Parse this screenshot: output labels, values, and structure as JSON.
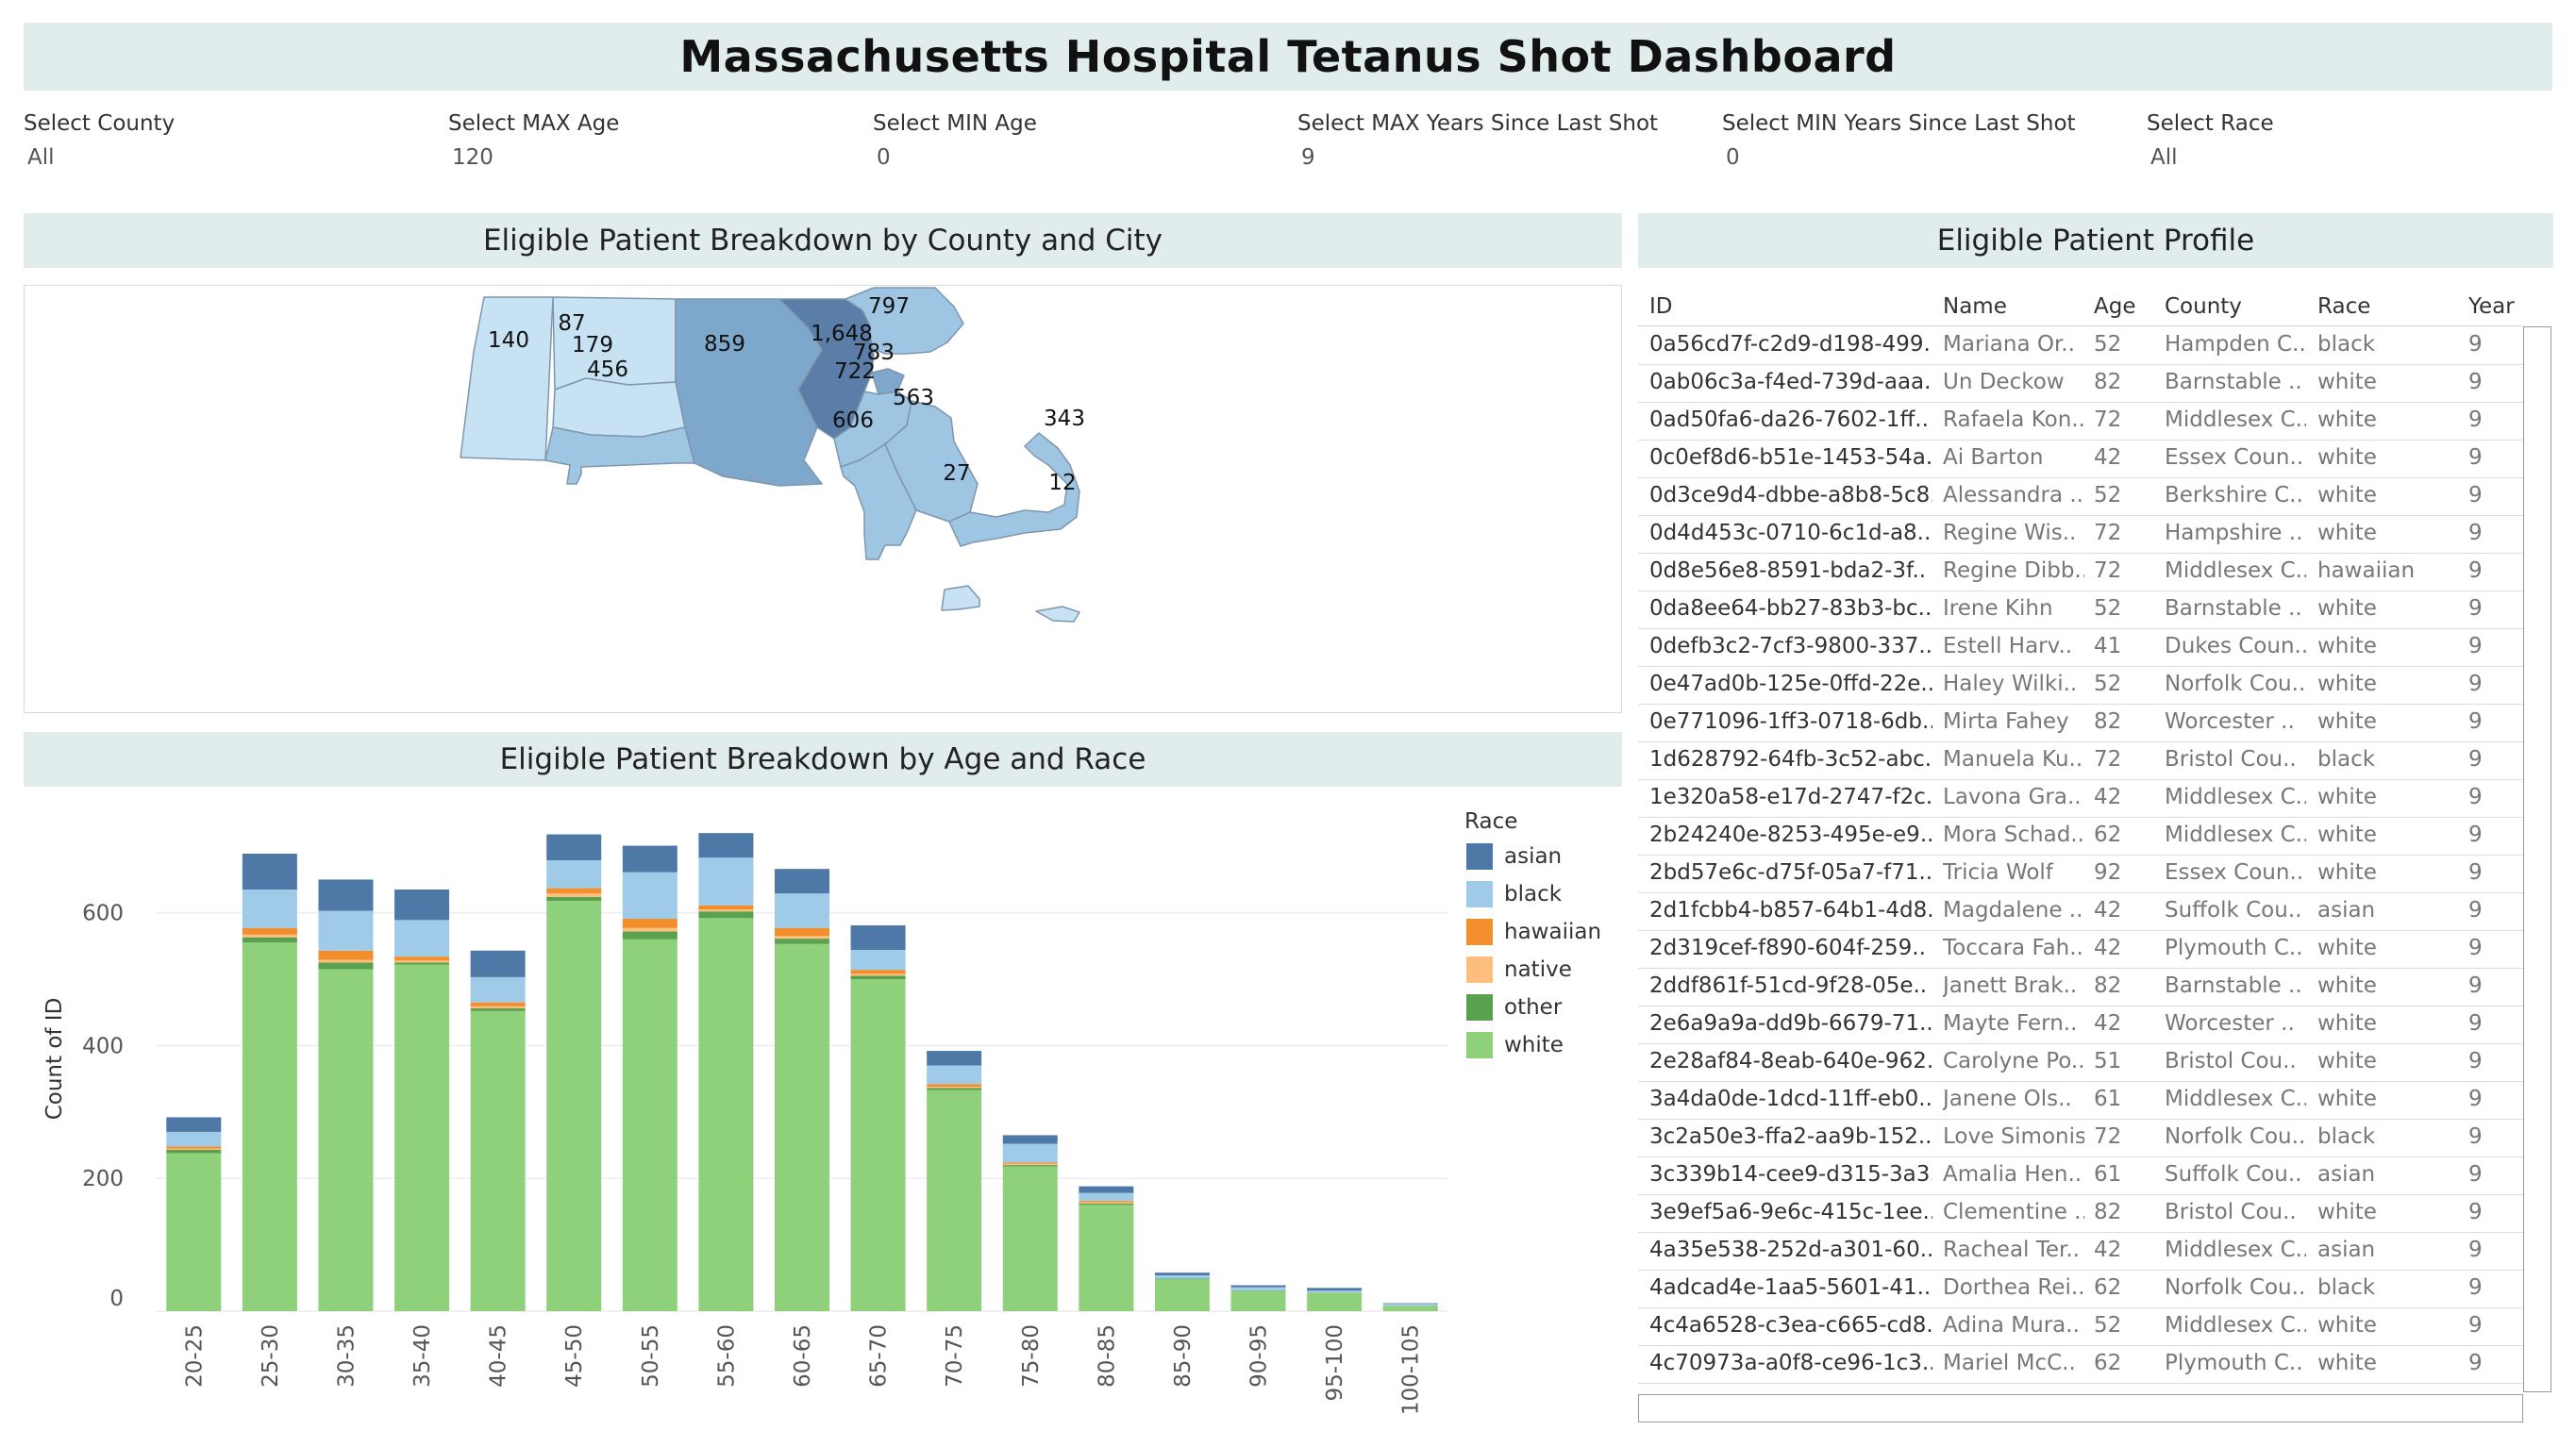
{
  "title": "Massachusetts Hospital Tetanus Shot Dashboard",
  "filters": [
    {
      "label": "Select County",
      "value": "All"
    },
    {
      "label": "Select MAX Age",
      "value": "120"
    },
    {
      "label": "Select MIN Age",
      "value": "0"
    },
    {
      "label": "Select MAX Years Since Last Shot",
      "value": "9"
    },
    {
      "label": "Select MIN Years Since Last Shot",
      "value": "0"
    },
    {
      "label": "Select Race",
      "value": "All"
    }
  ],
  "map_panel": {
    "title": "Eligible Patient Breakdown by County and City",
    "county_labels": [
      "797",
      "87",
      "140",
      "179",
      "859",
      "1,648",
      "783",
      "456",
      "722",
      "563",
      "606",
      "343",
      "27",
      "12"
    ]
  },
  "profile_panel": {
    "title": "Eligible Patient Profile",
    "columns": [
      "ID",
      "Name",
      "Age",
      "County",
      "Race",
      "Year"
    ],
    "rows": [
      [
        "0a56cd7f-c2d9-d198-499..",
        "Mariana Or..",
        "52",
        "Hampden C..",
        "black",
        "9"
      ],
      [
        "0ab06c3a-f4ed-739d-aaa..",
        "Un Deckow",
        "82",
        "Barnstable ..",
        "white",
        "9"
      ],
      [
        "0ad50fa6-da26-7602-1ff..",
        "Rafaela Kon..",
        "72",
        "Middlesex C..",
        "white",
        "9"
      ],
      [
        "0c0ef8d6-b51e-1453-54a..",
        "Ai Barton",
        "42",
        "Essex Coun..",
        "white",
        "9"
      ],
      [
        "0d3ce9d4-dbbe-a8b8-5c8..",
        "Alessandra ..",
        "52",
        "Berkshire C..",
        "white",
        "9"
      ],
      [
        "0d4d453c-0710-6c1d-a8..",
        "Regine Wis..",
        "72",
        "Hampshire ..",
        "white",
        "9"
      ],
      [
        "0d8e56e8-8591-bda2-3f..",
        "Regine Dibb..",
        "72",
        "Middlesex C..",
        "hawaiian",
        "9"
      ],
      [
        "0da8ee64-bb27-83b3-bc..",
        "Irene Kihn",
        "52",
        "Barnstable ..",
        "white",
        "9"
      ],
      [
        "0defb3c2-7cf3-9800-337..",
        "Estell Harv..",
        "41",
        "Dukes Coun..",
        "white",
        "9"
      ],
      [
        "0e47ad0b-125e-0ffd-22e..",
        "Haley Wilki..",
        "52",
        "Norfolk Cou..",
        "white",
        "9"
      ],
      [
        "0e771096-1ff3-0718-6db..",
        "Mirta Fahey",
        "82",
        "Worcester ..",
        "white",
        "9"
      ],
      [
        "1d628792-64fb-3c52-abc..",
        "Manuela Ku..",
        "72",
        "Bristol Cou..",
        "black",
        "9"
      ],
      [
        "1e320a58-e17d-2747-f2c..",
        "Lavona Gra..",
        "42",
        "Middlesex C..",
        "white",
        "9"
      ],
      [
        "2b24240e-8253-495e-e9..",
        "Mora Schad..",
        "62",
        "Middlesex C..",
        "white",
        "9"
      ],
      [
        "2bd57e6c-d75f-05a7-f71..",
        "Tricia Wolf",
        "92",
        "Essex Coun..",
        "white",
        "9"
      ],
      [
        "2d1fcbb4-b857-64b1-4d8..",
        "Magdalene ..",
        "42",
        "Suffolk Cou..",
        "asian",
        "9"
      ],
      [
        "2d319cef-f890-604f-259..",
        "Toccara Fah..",
        "42",
        "Plymouth C..",
        "white",
        "9"
      ],
      [
        "2ddf861f-51cd-9f28-05e..",
        "Janett Brak..",
        "82",
        "Barnstable ..",
        "white",
        "9"
      ],
      [
        "2e6a9a9a-dd9b-6679-71..",
        "Mayte Fern..",
        "42",
        "Worcester ..",
        "white",
        "9"
      ],
      [
        "2e28af84-8eab-640e-962..",
        "Carolyne Po..",
        "51",
        "Bristol Cou..",
        "white",
        "9"
      ],
      [
        "3a4da0de-1dcd-11ff-eb0..",
        "Janene Ols..",
        "61",
        "Middlesex C..",
        "white",
        "9"
      ],
      [
        "3c2a50e3-ffa2-aa9b-152..",
        "Love Simonis",
        "72",
        "Norfolk Cou..",
        "black",
        "9"
      ],
      [
        "3c339b14-cee9-d315-3a3..",
        "Amalia Hen..",
        "61",
        "Suffolk Cou..",
        "asian",
        "9"
      ],
      [
        "3e9ef5a6-9e6c-415c-1ee..",
        "Clementine ..",
        "82",
        "Bristol Cou..",
        "white",
        "9"
      ],
      [
        "4a35e538-252d-a301-60..",
        "Racheal Ter..",
        "42",
        "Middlesex C..",
        "asian",
        "9"
      ],
      [
        "4adcad4e-1aa5-5601-41..",
        "Dorthea Rei..",
        "62",
        "Norfolk Cou..",
        "black",
        "9"
      ],
      [
        "4c4a6528-c3ea-c665-cd8..",
        "Adina Mura..",
        "52",
        "Middlesex C..",
        "white",
        "9"
      ],
      [
        "4c70973a-a0f8-ce96-1c3..",
        "Mariel McC..",
        "62",
        "Plymouth C..",
        "white",
        "9"
      ]
    ]
  },
  "chart_panel": {
    "title": "Eligible Patient Breakdown by Age and Race"
  },
  "chart_data": {
    "type": "bar",
    "stacked": true,
    "title": "Eligible Patient Breakdown by Age and Race",
    "xlabel": "",
    "ylabel": "Count of ID",
    "ylim": [
      0,
      760
    ],
    "yticks": [
      0,
      200,
      400,
      600
    ],
    "grid": true,
    "legend": {
      "title": "Race",
      "position": "right"
    },
    "categories": [
      "20-25",
      "25-30",
      "30-35",
      "35-40",
      "40-45",
      "45-50",
      "50-55",
      "55-60",
      "60-65",
      "65-70",
      "70-75",
      "75-80",
      "80-85",
      "85-90",
      "90-95",
      "95-100",
      "100-105"
    ],
    "series": [
      {
        "name": "white",
        "color": "#8fd17a",
        "values": [
          238,
          555,
          515,
          522,
          452,
          618,
          560,
          592,
          553,
          500,
          333,
          218,
          160,
          48,
          30,
          28,
          8
        ]
      },
      {
        "name": "other",
        "color": "#59a14f",
        "values": [
          5,
          8,
          10,
          3,
          4,
          6,
          12,
          10,
          8,
          5,
          3,
          2,
          2,
          1,
          1,
          0,
          0
        ]
      },
      {
        "name": "native",
        "color": "#ffbe7d",
        "values": [
          2,
          4,
          4,
          3,
          3,
          5,
          5,
          3,
          4,
          3,
          2,
          2,
          2,
          0,
          0,
          0,
          0
        ]
      },
      {
        "name": "hawaiian",
        "color": "#f28e2b",
        "values": [
          3,
          10,
          14,
          6,
          6,
          8,
          14,
          6,
          12,
          6,
          4,
          2,
          2,
          0,
          0,
          0,
          0
        ]
      },
      {
        "name": "black",
        "color": "#a0cbe8",
        "values": [
          22,
          58,
          60,
          55,
          38,
          42,
          70,
          72,
          52,
          30,
          28,
          28,
          12,
          5,
          5,
          3,
          3
        ]
      },
      {
        "name": "asian",
        "color": "#4e79a7",
        "values": [
          22,
          54,
          47,
          46,
          40,
          39,
          40,
          37,
          37,
          37,
          22,
          13,
          10,
          4,
          3,
          4,
          1
        ]
      }
    ]
  },
  "colors": {
    "banner": "#e1ecec",
    "map_light": "#c6e2f3",
    "map_mid": "#9ec5e2",
    "map_dark": "#7ea7cc",
    "map_darkest": "#5a7ea8"
  }
}
